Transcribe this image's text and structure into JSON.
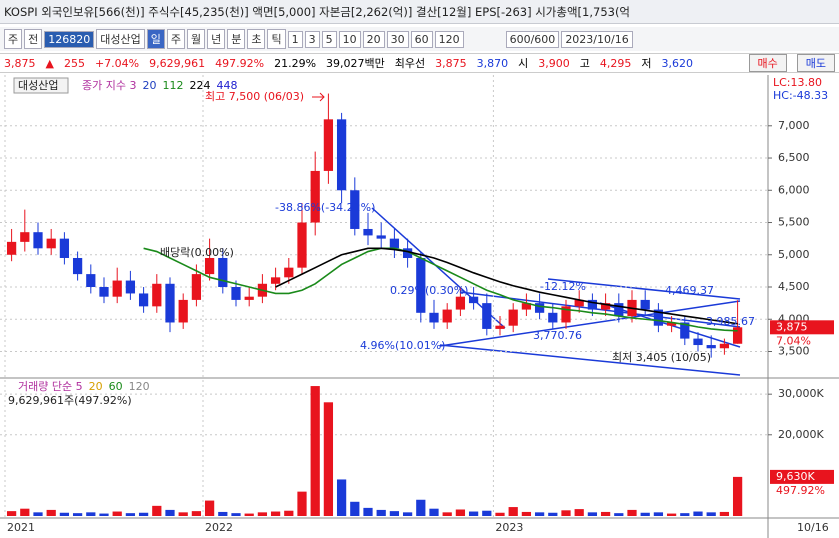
{
  "header": {
    "title": "KOSPI 외국인보유[566(천)] 주식수[45,235(천)] 액면[5,000] 자본금[2,262(억)] 결산[12월] EPS[-263] 시가총액[1,753(억"
  },
  "toolbar": {
    "items": [
      "주",
      "전",
      "126820",
      "대성산업",
      "일",
      "주",
      "월",
      "년",
      "분",
      "초",
      "틱",
      "1",
      "3",
      "5",
      "10",
      "20",
      "30",
      "60",
      "120",
      "600/600",
      "2023/10/16"
    ]
  },
  "quote": {
    "items": [
      "3,875",
      "▲",
      "255",
      "+7.04%",
      "9,629,961",
      "497.92%",
      "21.29%",
      "39,027백만",
      "최우선",
      "3,875",
      "3,870",
      "시",
      "3,900",
      "고",
      "4,295",
      "저",
      "3,620"
    ],
    "buy": "매수",
    "sell": "매도"
  },
  "chart_data": {
    "type": "candlestick",
    "stock": "대성산업",
    "lc": "LC:13.80",
    "hc": "HC:-48.33",
    "legend": [
      {
        "name": "종가 지수 3",
        "color": "#b0309e"
      },
      {
        "name": "20",
        "color": "#1f3fbf"
      },
      {
        "name": "448",
        "color": "#2020d0"
      }
    ],
    "categories": [
      "2021",
      null,
      null,
      null,
      null,
      null,
      null,
      null,
      null,
      null,
      null,
      null,
      null,
      null,
      null,
      "2022",
      null,
      null,
      null,
      null,
      null,
      null,
      null,
      null,
      null,
      null,
      null,
      null,
      null,
      null,
      null,
      null,
      null,
      null,
      null,
      null,
      null,
      "2023",
      null,
      null,
      null,
      null,
      null,
      null,
      null,
      null,
      null,
      null,
      null,
      null,
      null,
      null,
      null,
      null,
      null,
      "10/16"
    ],
    "open": [
      5000,
      5200,
      5350,
      5100,
      5250,
      4950,
      4700,
      4500,
      4350,
      4600,
      4400,
      4200,
      4550,
      3950,
      4300,
      4700,
      4950,
      4500,
      4300,
      4350,
      4550,
      4650,
      4800,
      5500,
      6300,
      7100,
      6000,
      5400,
      5300,
      5250,
      5100,
      4950,
      4100,
      3950,
      4150,
      4350,
      4250,
      3850,
      3900,
      4150,
      4250,
      4100,
      3950,
      4200,
      4300,
      4150,
      4250,
      4050,
      4300,
      4150,
      3900,
      3950,
      3700,
      3600,
      3550,
      3620
    ],
    "high": [
      5400,
      5700,
      5500,
      5400,
      5350,
      5050,
      4850,
      4650,
      4800,
      4750,
      4500,
      4700,
      4650,
      4400,
      4850,
      5250,
      5100,
      4600,
      4500,
      4700,
      4800,
      4950,
      5800,
      6600,
      7500,
      7200,
      6200,
      5650,
      5500,
      5400,
      5250,
      5050,
      4300,
      4250,
      4500,
      4500,
      4400,
      4050,
      4250,
      4400,
      4400,
      4250,
      4300,
      4450,
      4400,
      4400,
      4400,
      4450,
      4450,
      4250,
      4050,
      4050,
      3800,
      3750,
      3700,
      4295
    ],
    "low": [
      4900,
      5050,
      5000,
      5000,
      4850,
      4600,
      4400,
      4250,
      4250,
      4300,
      4100,
      4100,
      3800,
      3850,
      4200,
      4600,
      4400,
      4200,
      4200,
      4250,
      4450,
      4550,
      4700,
      5300,
      6100,
      5800,
      5300,
      5150,
      5100,
      4950,
      4800,
      3950,
      3850,
      3850,
      4050,
      4150,
      3750,
      3750,
      3800,
      4050,
      4000,
      3850,
      3850,
      4100,
      4050,
      4050,
      3950,
      3950,
      4050,
      3800,
      3800,
      3600,
      3500,
      3405,
      3450,
      3620
    ],
    "close": [
      5200,
      5350,
      5100,
      5250,
      4950,
      4700,
      4500,
      4350,
      4600,
      4400,
      4200,
      4550,
      3950,
      4300,
      4700,
      4950,
      4500,
      4300,
      4350,
      4550,
      4650,
      4800,
      5500,
      6300,
      7100,
      6000,
      5400,
      5300,
      5250,
      5100,
      4950,
      4100,
      3950,
      4150,
      4350,
      4250,
      3850,
      3900,
      4150,
      4250,
      4100,
      3950,
      4200,
      4300,
      4150,
      4250,
      4050,
      4300,
      4150,
      3900,
      3950,
      3700,
      3600,
      3550,
      3620,
      3875
    ],
    "series": [
      {
        "name": "112",
        "color": "#1a8a1a",
        "values": [
          null,
          null,
          null,
          null,
          null,
          null,
          null,
          null,
          null,
          null,
          5100,
          5050,
          4950,
          4850,
          4750,
          4650,
          4600,
          4550,
          4500,
          4450,
          4400,
          4400,
          4450,
          4550,
          4700,
          4850,
          4950,
          5050,
          5100,
          5100,
          5050,
          4950,
          4850,
          4750,
          4650,
          4550,
          4450,
          4380,
          4300,
          4250,
          4200,
          4180,
          4150,
          4130,
          4100,
          4080,
          4050,
          4020,
          4000,
          3980,
          3950,
          3920,
          3880,
          3850,
          3830,
          3820
        ]
      },
      {
        "name": "224",
        "color": "#000000",
        "values": [
          null,
          null,
          null,
          null,
          null,
          null,
          null,
          null,
          null,
          null,
          null,
          null,
          null,
          null,
          null,
          null,
          null,
          null,
          null,
          null,
          4500,
          4600,
          4700,
          4800,
          4900,
          5000,
          5050,
          5100,
          5100,
          5080,
          5050,
          5000,
          4950,
          4880,
          4800,
          4720,
          4650,
          4580,
          4520,
          4470,
          4420,
          4380,
          4340,
          4300,
          4260,
          4230,
          4200,
          4170,
          4140,
          4110,
          4080,
          4050,
          4020,
          3990,
          3960,
          3930
        ]
      }
    ],
    "ylim": [
      3120,
      7710
    ],
    "yticks": [
      {
        "value": 3500,
        "label": "3,500"
      },
      {
        "value": 4000,
        "label": "4,000"
      },
      {
        "value": 4500,
        "label": "4,500"
      },
      {
        "value": 5000,
        "label": "5,000"
      },
      {
        "value": 5500,
        "label": "5,500"
      },
      {
        "value": 6000,
        "label": "6,000"
      },
      {
        "value": 6500,
        "label": "6,500"
      },
      {
        "value": 7000,
        "label": "7,000"
      }
    ],
    "grid": true,
    "up_color": "#e8141e",
    "down_color": "#1a3ad8",
    "last_label": "3,875",
    "last_change": "7.04%",
    "annotations": [
      {
        "text": "최고 7,500 (06/03)",
        "color": "#e8141e"
      },
      {
        "text": "배당락(0.00%)",
        "color": "#222222"
      },
      {
        "text": "-38.86%(-34.22%)",
        "color": "#1a3ad8"
      },
      {
        "text": "0.29%(0.30%)",
        "color": "#1a3ad8"
      },
      {
        "text": "4.96%(10.01%)",
        "color": "#1a3ad8"
      },
      {
        "text": "-12.12%",
        "color": "#1a3ad8"
      },
      {
        "text": "3,770.76",
        "color": "#1a3ad8"
      },
      {
        "text": "4,469.37",
        "color": "#1a3ad8"
      },
      {
        "text": "3,985.67",
        "color": "#1a3ad8"
      },
      {
        "text": "최저 3,405 (10/05)",
        "color": "#222222"
      }
    ],
    "volume": {
      "title": "거래량 단순 5",
      "ma_legend": [
        {
          "name": "20",
          "color": "#d6a000"
        },
        {
          "name": "60",
          "color": "#1a8a1a"
        },
        {
          "name": "120",
          "color": "#888888"
        }
      ],
      "info": "9,629,961주(497.92%)",
      "values": [
        1200000,
        1800000,
        900000,
        1500000,
        800000,
        700000,
        900000,
        600000,
        1100000,
        700000,
        800000,
        2500000,
        1500000,
        900000,
        1200000,
        3800000,
        1000000,
        700000,
        600000,
        900000,
        1100000,
        1300000,
        6000000,
        32000000,
        28000000,
        9000000,
        3500000,
        2000000,
        1500000,
        1200000,
        900000,
        4000000,
        1800000,
        900000,
        1600000,
        1100000,
        1300000,
        800000,
        2200000,
        1000000,
        900000,
        800000,
        1400000,
        1700000,
        900000,
        1000000,
        700000,
        1500000,
        800000,
        900000,
        600000,
        700000,
        1100000,
        900000,
        1000000,
        9629961
      ],
      "ylim": [
        0,
        33000000
      ],
      "yticks": [
        {
          "value": 20000000,
          "label": "20,000K"
        },
        {
          "value": 30000000,
          "label": "30,000K"
        }
      ],
      "last_label": "9,630K",
      "last_change": "497.92%"
    }
  }
}
